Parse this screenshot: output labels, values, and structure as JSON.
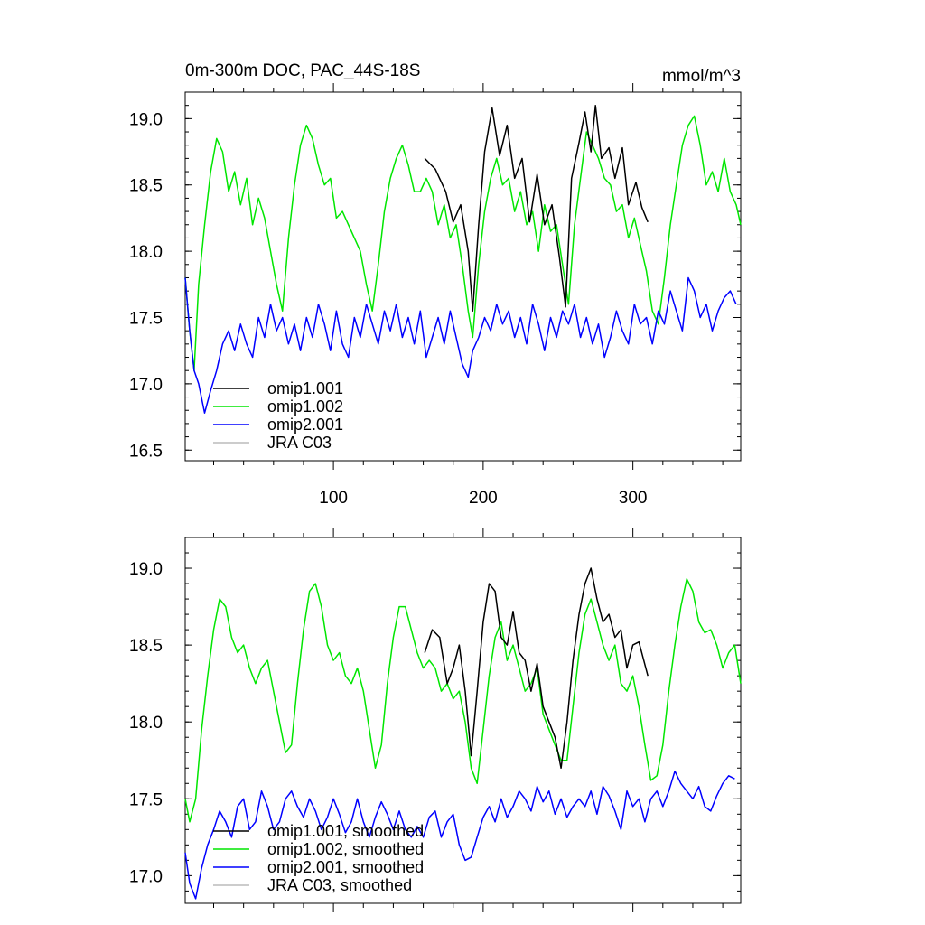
{
  "chart_data": [
    {
      "type": "line",
      "title": "0m-300m DOC, PAC_44S-18S",
      "units": "mmol/m^3",
      "xlim": [
        1,
        372
      ],
      "ylim": [
        16.42,
        19.2
      ],
      "xticks": [
        100,
        200,
        300
      ],
      "yticks": [
        16.5,
        17.0,
        17.5,
        18.0,
        18.5,
        19.0
      ],
      "ytick_labels": [
        "16.5",
        "17.0",
        "17.5",
        "18.0",
        "18.5",
        "19.0"
      ],
      "legend_position": "bottom-left",
      "series": [
        {
          "name": "omip1.001",
          "color": "#000000",
          "x": [
            161,
            168,
            175,
            180,
            185,
            190,
            193,
            197,
            201,
            206,
            211,
            216,
            221,
            226,
            231,
            236,
            241,
            246,
            251,
            255,
            259,
            264,
            268,
            272,
            275,
            279,
            284,
            288,
            293,
            297,
            302,
            306,
            310
          ],
          "y": [
            18.7,
            18.62,
            18.45,
            18.22,
            18.35,
            18.0,
            17.55,
            18.2,
            18.75,
            19.08,
            18.72,
            18.95,
            18.55,
            18.7,
            18.22,
            18.58,
            18.2,
            18.35,
            17.95,
            17.58,
            18.55,
            18.82,
            19.05,
            18.75,
            19.1,
            18.7,
            18.78,
            18.55,
            18.78,
            18.35,
            18.52,
            18.33,
            18.22
          ]
        },
        {
          "name": "omip1.002",
          "color": "#00e600",
          "x": [
            1,
            4,
            7,
            10,
            14,
            18,
            22,
            26,
            30,
            34,
            38,
            42,
            46,
            50,
            54,
            58,
            62,
            66,
            70,
            74,
            78,
            82,
            86,
            90,
            94,
            98,
            102,
            106,
            110,
            114,
            118,
            122,
            126,
            130,
            134,
            138,
            142,
            146,
            150,
            154,
            158,
            162,
            166,
            170,
            174,
            178,
            182,
            186,
            190,
            193,
            197,
            201,
            205,
            209,
            213,
            217,
            221,
            225,
            229,
            233,
            237,
            241,
            245,
            249,
            253,
            257,
            261,
            265,
            269,
            273,
            277,
            281,
            285,
            289,
            293,
            297,
            301,
            305,
            309,
            313,
            317,
            321,
            325,
            329,
            333,
            337,
            341,
            345,
            349,
            353,
            357,
            361,
            365,
            369,
            372
          ],
          "y": [
            17.8,
            17.4,
            17.1,
            17.75,
            18.2,
            18.6,
            18.85,
            18.75,
            18.45,
            18.6,
            18.35,
            18.55,
            18.2,
            18.4,
            18.25,
            18.0,
            17.75,
            17.55,
            18.1,
            18.5,
            18.8,
            18.95,
            18.85,
            18.65,
            18.5,
            18.55,
            18.25,
            18.3,
            18.2,
            18.1,
            18.0,
            17.75,
            17.55,
            17.9,
            18.3,
            18.55,
            18.7,
            18.8,
            18.65,
            18.45,
            18.45,
            18.55,
            18.45,
            18.2,
            18.35,
            18.1,
            18.2,
            17.9,
            17.55,
            17.35,
            17.9,
            18.3,
            18.55,
            18.7,
            18.5,
            18.55,
            18.3,
            18.45,
            18.2,
            18.3,
            18.0,
            18.35,
            18.15,
            18.2,
            17.9,
            17.6,
            18.2,
            18.55,
            18.9,
            18.8,
            18.7,
            18.55,
            18.5,
            18.3,
            18.35,
            18.1,
            18.25,
            18.05,
            17.85,
            17.55,
            17.45,
            17.8,
            18.2,
            18.5,
            18.8,
            18.95,
            19.02,
            18.8,
            18.5,
            18.6,
            18.45,
            18.7,
            18.45,
            18.35,
            18.2
          ]
        },
        {
          "name": "omip2.001",
          "color": "#0000ff",
          "x": [
            1,
            4,
            7,
            10,
            14,
            18,
            22,
            26,
            30,
            34,
            38,
            42,
            46,
            50,
            54,
            58,
            62,
            66,
            70,
            74,
            78,
            82,
            86,
            90,
            94,
            98,
            102,
            106,
            110,
            114,
            118,
            122,
            126,
            130,
            134,
            138,
            142,
            146,
            150,
            154,
            158,
            162,
            166,
            170,
            174,
            178,
            182,
            186,
            190,
            193,
            197,
            201,
            205,
            209,
            213,
            217,
            221,
            225,
            229,
            233,
            237,
            241,
            245,
            249,
            253,
            257,
            261,
            265,
            269,
            273,
            277,
            281,
            285,
            289,
            293,
            297,
            301,
            305,
            309,
            313,
            317,
            321,
            325,
            329,
            333,
            337,
            341,
            345,
            349,
            353,
            357,
            361,
            365,
            369
          ],
          "y": [
            17.8,
            17.4,
            17.1,
            17.0,
            16.78,
            16.95,
            17.1,
            17.3,
            17.4,
            17.25,
            17.45,
            17.3,
            17.2,
            17.5,
            17.35,
            17.6,
            17.4,
            17.5,
            17.3,
            17.45,
            17.25,
            17.5,
            17.35,
            17.6,
            17.45,
            17.25,
            17.55,
            17.3,
            17.2,
            17.5,
            17.35,
            17.6,
            17.45,
            17.3,
            17.55,
            17.4,
            17.6,
            17.35,
            17.5,
            17.3,
            17.55,
            17.2,
            17.35,
            17.5,
            17.3,
            17.55,
            17.35,
            17.15,
            17.05,
            17.25,
            17.35,
            17.5,
            17.4,
            17.6,
            17.45,
            17.55,
            17.35,
            17.5,
            17.3,
            17.6,
            17.45,
            17.25,
            17.5,
            17.35,
            17.55,
            17.45,
            17.6,
            17.35,
            17.5,
            17.3,
            17.45,
            17.2,
            17.35,
            17.55,
            17.4,
            17.3,
            17.6,
            17.45,
            17.5,
            17.3,
            17.55,
            17.45,
            17.7,
            17.55,
            17.4,
            17.8,
            17.7,
            17.5,
            17.6,
            17.4,
            17.55,
            17.65,
            17.7,
            17.6
          ]
        },
        {
          "name": "JRA C03",
          "color": "#bbbbbb",
          "x": [],
          "y": []
        }
      ]
    },
    {
      "type": "line",
      "xlim": [
        1,
        372
      ],
      "ylim": [
        16.82,
        19.2
      ],
      "xticks": [
        100,
        200,
        300
      ],
      "yticks": [
        17.0,
        17.5,
        18.0,
        18.5,
        19.0
      ],
      "ytick_labels": [
        "17.0",
        "17.5",
        "18.0",
        "18.5",
        "19.0"
      ],
      "legend_position": "bottom-left",
      "series": [
        {
          "name": "omip1.001, smoothed",
          "color": "#000000",
          "x": [
            161,
            166,
            171,
            176,
            180,
            184,
            188,
            192,
            196,
            200,
            204,
            208,
            212,
            216,
            220,
            224,
            228,
            232,
            236,
            240,
            244,
            248,
            252,
            256,
            260,
            264,
            268,
            272,
            276,
            280,
            284,
            288,
            292,
            296,
            300,
            304,
            310
          ],
          "y": [
            18.45,
            18.6,
            18.55,
            18.25,
            18.35,
            18.5,
            18.2,
            17.78,
            18.2,
            18.65,
            18.9,
            18.85,
            18.55,
            18.5,
            18.72,
            18.45,
            18.4,
            18.2,
            18.38,
            18.1,
            18.0,
            17.9,
            17.7,
            18.0,
            18.4,
            18.7,
            18.9,
            19.0,
            18.8,
            18.65,
            18.7,
            18.55,
            18.6,
            18.35,
            18.5,
            18.52,
            18.3
          ]
        },
        {
          "name": "omip1.002, smoothed",
          "color": "#00e600",
          "x": [
            1,
            4,
            8,
            12,
            16,
            20,
            24,
            28,
            32,
            36,
            40,
            44,
            48,
            52,
            56,
            60,
            64,
            68,
            72,
            76,
            80,
            84,
            88,
            92,
            96,
            100,
            104,
            108,
            112,
            116,
            120,
            124,
            128,
            132,
            136,
            140,
            144,
            148,
            152,
            156,
            160,
            164,
            168,
            172,
            176,
            180,
            184,
            188,
            192,
            196,
            200,
            204,
            208,
            212,
            216,
            220,
            224,
            228,
            232,
            236,
            240,
            244,
            248,
            252,
            256,
            260,
            264,
            268,
            272,
            276,
            280,
            284,
            288,
            292,
            296,
            300,
            304,
            308,
            312,
            316,
            320,
            324,
            328,
            332,
            336,
            340,
            344,
            348,
            352,
            356,
            360,
            364,
            368,
            372
          ],
          "y": [
            17.5,
            17.35,
            17.5,
            17.95,
            18.3,
            18.6,
            18.8,
            18.75,
            18.55,
            18.45,
            18.5,
            18.35,
            18.25,
            18.35,
            18.4,
            18.2,
            18.0,
            17.8,
            17.85,
            18.25,
            18.6,
            18.85,
            18.9,
            18.75,
            18.5,
            18.4,
            18.45,
            18.3,
            18.25,
            18.35,
            18.2,
            17.95,
            17.7,
            17.85,
            18.25,
            18.55,
            18.75,
            18.75,
            18.6,
            18.45,
            18.35,
            18.4,
            18.35,
            18.2,
            18.25,
            18.15,
            18.2,
            18.0,
            17.7,
            17.6,
            17.95,
            18.3,
            18.55,
            18.65,
            18.4,
            18.5,
            18.35,
            18.2,
            18.25,
            18.35,
            18.05,
            17.95,
            17.85,
            17.75,
            17.75,
            18.1,
            18.45,
            18.7,
            18.8,
            18.65,
            18.5,
            18.4,
            18.5,
            18.25,
            18.2,
            18.3,
            18.1,
            17.85,
            17.62,
            17.65,
            17.85,
            18.2,
            18.5,
            18.75,
            18.93,
            18.85,
            18.65,
            18.58,
            18.6,
            18.5,
            18.35,
            18.45,
            18.5,
            18.25
          ]
        },
        {
          "name": "omip2.001, smoothed",
          "color": "#0000ff",
          "x": [
            1,
            4,
            8,
            12,
            16,
            20,
            24,
            28,
            32,
            36,
            40,
            44,
            48,
            52,
            56,
            60,
            64,
            68,
            72,
            76,
            80,
            84,
            88,
            92,
            96,
            100,
            104,
            108,
            112,
            116,
            120,
            124,
            128,
            132,
            136,
            140,
            144,
            148,
            152,
            156,
            160,
            164,
            168,
            172,
            176,
            180,
            184,
            188,
            192,
            196,
            200,
            204,
            208,
            212,
            216,
            220,
            224,
            228,
            232,
            236,
            240,
            244,
            248,
            252,
            256,
            260,
            264,
            268,
            272,
            276,
            280,
            284,
            288,
            292,
            296,
            300,
            304,
            308,
            312,
            316,
            320,
            324,
            328,
            332,
            336,
            340,
            344,
            348,
            352,
            356,
            360,
            364,
            368
          ],
          "y": [
            17.15,
            16.95,
            16.85,
            17.05,
            17.2,
            17.3,
            17.42,
            17.35,
            17.25,
            17.45,
            17.5,
            17.3,
            17.35,
            17.55,
            17.45,
            17.3,
            17.35,
            17.5,
            17.55,
            17.45,
            17.38,
            17.5,
            17.42,
            17.3,
            17.38,
            17.5,
            17.4,
            17.28,
            17.35,
            17.5,
            17.35,
            17.25,
            17.38,
            17.48,
            17.4,
            17.3,
            17.42,
            17.3,
            17.25,
            17.32,
            17.25,
            17.38,
            17.42,
            17.25,
            17.35,
            17.4,
            17.2,
            17.1,
            17.12,
            17.25,
            17.38,
            17.45,
            17.35,
            17.5,
            17.38,
            17.45,
            17.55,
            17.5,
            17.42,
            17.58,
            17.48,
            17.55,
            17.4,
            17.5,
            17.38,
            17.45,
            17.5,
            17.45,
            17.55,
            17.4,
            17.58,
            17.52,
            17.42,
            17.3,
            17.55,
            17.45,
            17.5,
            17.35,
            17.5,
            17.55,
            17.45,
            17.55,
            17.68,
            17.6,
            17.55,
            17.5,
            17.58,
            17.45,
            17.42,
            17.52,
            17.6,
            17.65,
            17.63
          ]
        },
        {
          "name": "JRA C03, smoothed",
          "color": "#bbbbbb",
          "x": [],
          "y": []
        }
      ]
    }
  ]
}
